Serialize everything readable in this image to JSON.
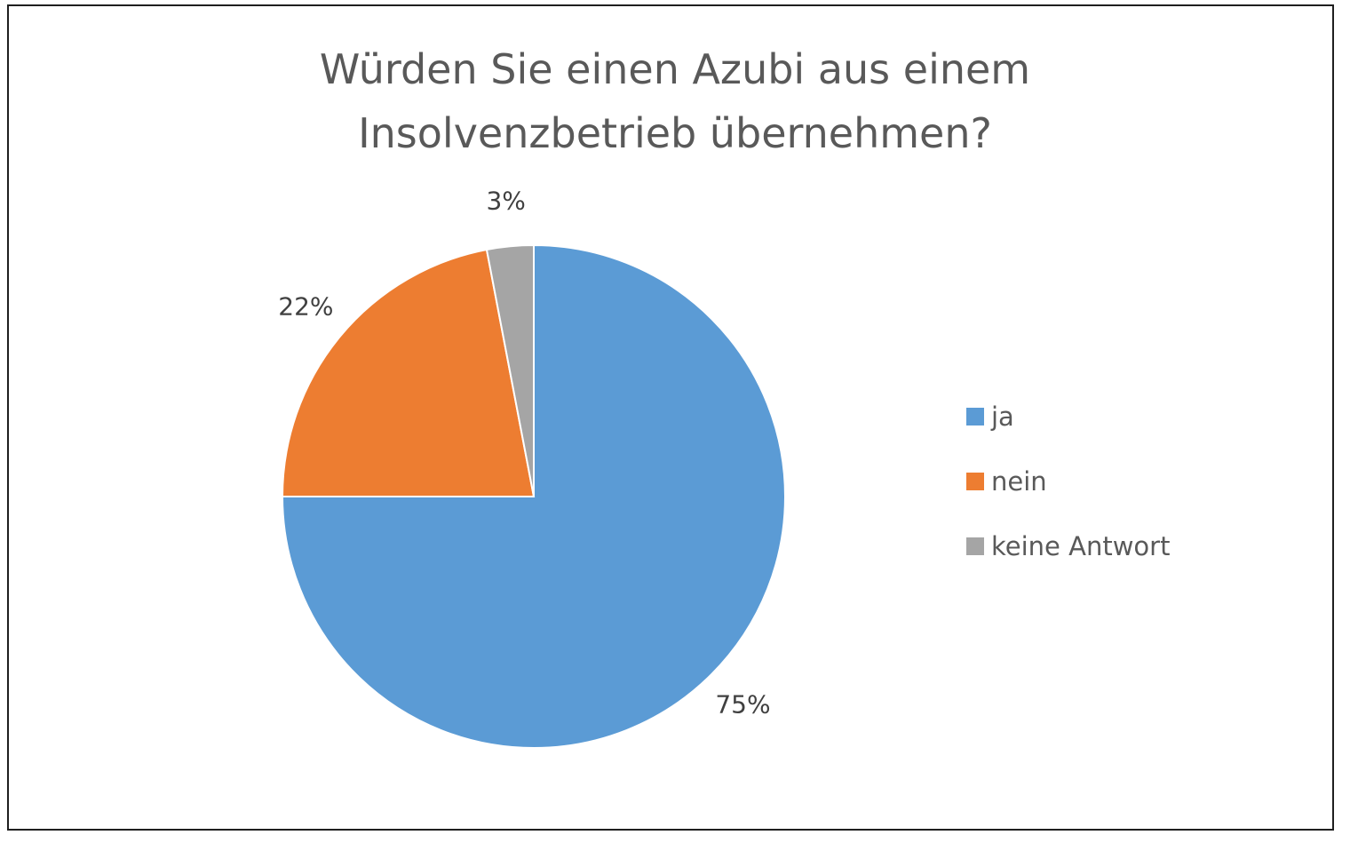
{
  "chart_data": {
    "type": "pie",
    "title_lines": [
      "Würden Sie einen Azubi aus einem",
      "Insolvenzbetrieb übernehmen?"
    ],
    "categories": [
      "ja",
      "nein",
      "keine Antwort"
    ],
    "values": [
      75,
      22,
      3
    ],
    "data_labels": [
      "75%",
      "22%",
      "3%"
    ],
    "colors": [
      "#5b9bd5",
      "#ed7d31",
      "#a5a5a5"
    ],
    "legend_position": "right"
  }
}
